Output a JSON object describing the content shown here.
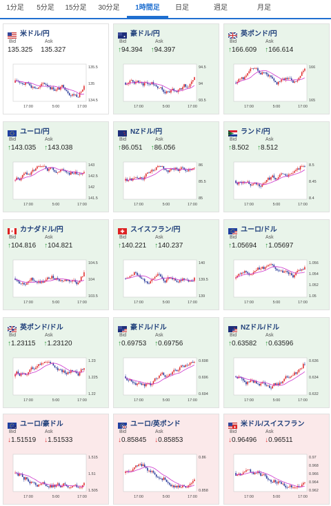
{
  "tabs": [
    {
      "label": "1分足",
      "active": false
    },
    {
      "label": "5分足",
      "active": false
    },
    {
      "label": "15分足",
      "active": false
    },
    {
      "label": "30分足",
      "active": false
    },
    {
      "label": "1時間足",
      "active": true
    },
    {
      "label": "日足",
      "active": false
    },
    {
      "label": "週足",
      "active": false
    },
    {
      "label": "月足",
      "active": false
    }
  ],
  "labels": {
    "bid": "Bid",
    "ask": "Ask"
  },
  "colors": {
    "up": "#2d9a3a",
    "down": "#d33333",
    "candle_up": "#e03030",
    "candle_down": "#2a3a9a",
    "ma": "#cc33cc",
    "name": "#1f3f7a",
    "tab_active": "#1f6fd0"
  },
  "pairs": [
    {
      "name": "米ドル/円",
      "flag": "us-flag",
      "tone": "neutral",
      "arrow": "",
      "bid": "135.325",
      "ask": "135.327",
      "x_ticks": [
        "17:00",
        "5:00",
        "17:00"
      ],
      "y_ticks": [
        "135.5",
        "135",
        "134.5"
      ]
    },
    {
      "name": "豪ドル/円",
      "flag": "au-flag",
      "tone": "up",
      "arrow": "↑",
      "bid": "94.394",
      "ask": "94.397",
      "x_ticks": [
        "17:00",
        "5:00",
        "17:00"
      ],
      "y_ticks": [
        "94.5",
        "94",
        "93.5"
      ]
    },
    {
      "name": "英ポンド/円",
      "flag": "gb-flag",
      "tone": "up",
      "arrow": "↑",
      "bid": "166.609",
      "ask": "166.614",
      "x_ticks": [
        "17:00",
        "5:00",
        "17:00"
      ],
      "y_ticks": [
        "166",
        "165"
      ]
    },
    {
      "name": "ユーロ/円",
      "flag": "eu-flag",
      "tone": "up",
      "arrow": "↑",
      "bid": "143.035",
      "ask": "143.038",
      "x_ticks": [
        "17:00",
        "5:00",
        "17:00"
      ],
      "y_ticks": [
        "143",
        "142.5",
        "142",
        "141.5"
      ]
    },
    {
      "name": "NZドル/円",
      "flag": "nz-flag",
      "tone": "up",
      "arrow": "↑",
      "bid": "86.051",
      "ask": "86.056",
      "x_ticks": [
        "17:00",
        "5:00",
        "17:00"
      ],
      "y_ticks": [
        "86",
        "85.5",
        "85"
      ]
    },
    {
      "name": "ランド/円",
      "flag": "za-flag",
      "tone": "up",
      "arrow": "↑",
      "bid": "8.502",
      "ask": "8.512",
      "x_ticks": [
        "17:00",
        "5:00",
        "17:00"
      ],
      "y_ticks": [
        "8.5",
        "8.45",
        "8.4"
      ]
    },
    {
      "name": "カナダドル/円",
      "flag": "ca-flag",
      "tone": "up",
      "arrow": "↑",
      "bid": "104.816",
      "ask": "104.821",
      "x_ticks": [
        "17:00",
        "5:00",
        "17:00"
      ],
      "y_ticks": [
        "104.5",
        "104",
        "103.5"
      ]
    },
    {
      "name": "スイスフラン/円",
      "flag": "ch-flag",
      "tone": "up",
      "arrow": "↑",
      "bid": "140.221",
      "ask": "140.237",
      "x_ticks": [
        "17:00",
        "5:00",
        "17:00"
      ],
      "y_ticks": [
        "140",
        "139.5",
        "139"
      ]
    },
    {
      "name": "ユーロ/ドル",
      "flag": "eu-us-flag",
      "tone": "up",
      "arrow": "↑",
      "bid": "1.05694",
      "ask": "1.05697",
      "x_ticks": [
        "17:00",
        "5:00",
        "17:00"
      ],
      "y_ticks": [
        "1.056",
        "1.054",
        "1.052",
        "1.05"
      ]
    },
    {
      "name": "英ポンド/ドル",
      "flag": "gb-us-flag",
      "tone": "up",
      "arrow": "↑",
      "bid": "1.23115",
      "ask": "1.23120",
      "x_ticks": [
        "17:00",
        "5:00",
        "17:00"
      ],
      "y_ticks": [
        "1.23",
        "1.225",
        "1.22"
      ]
    },
    {
      "name": "豪ドル/ドル",
      "flag": "au-us-flag",
      "tone": "up",
      "arrow": "↑",
      "bid": "0.69753",
      "ask": "0.69756",
      "x_ticks": [
        "17:00",
        "5:00",
        "17:00"
      ],
      "y_ticks": [
        "0.698",
        "0.696",
        "0.694"
      ]
    },
    {
      "name": "NZドル/ドル",
      "flag": "nz-us-flag",
      "tone": "up",
      "arrow": "↑",
      "bid": "0.63582",
      "ask": "0.63596",
      "x_ticks": [
        "17:00",
        "5:00",
        "17:00"
      ],
      "y_ticks": [
        "0.636",
        "0.634",
        "0.632"
      ]
    },
    {
      "name": "ユーロ/豪ドル",
      "flag": "eu-au-flag",
      "tone": "down",
      "arrow": "↓",
      "bid": "1.51519",
      "ask": "1.51533",
      "x_ticks": [
        "17:00",
        "5:00",
        "17:00"
      ],
      "y_ticks": [
        "1.515",
        "1.51",
        "1.505"
      ]
    },
    {
      "name": "ユーロ/英ポンド",
      "flag": "eu-gb-flag",
      "tone": "down",
      "arrow": "↓",
      "bid": "0.85845",
      "ask": "0.85853",
      "x_ticks": [
        "17:00",
        "5:00",
        "17:00"
      ],
      "y_ticks": [
        "0.86",
        "0.858"
      ]
    },
    {
      "name": "米ドル/スイスフラン",
      "flag": "us-ch-flag",
      "tone": "down",
      "arrow": "↓",
      "bid": "0.96496",
      "ask": "0.96511",
      "x_ticks": [
        "17:00",
        "5:00",
        "17:00"
      ],
      "y_ticks": [
        "0.97",
        "0.968",
        "0.966",
        "0.964",
        "0.962"
      ]
    }
  ]
}
